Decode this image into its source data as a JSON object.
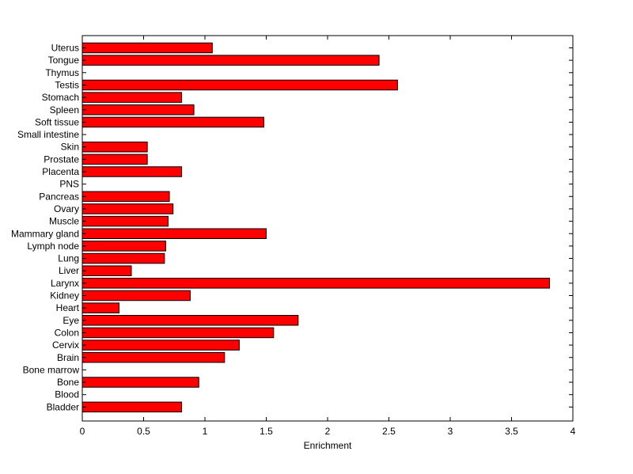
{
  "chart_data": {
    "type": "bar",
    "orientation": "horizontal",
    "title": "",
    "xlabel": "Enrichment",
    "ylabel": "",
    "xlim": [
      0,
      4
    ],
    "xticks": [
      0,
      0.5,
      1,
      1.5,
      2,
      2.5,
      3,
      3.5,
      4
    ],
    "xtick_labels": [
      "0",
      "0.5",
      "1",
      "1.5",
      "2",
      "2.5",
      "3",
      "3.5",
      "4"
    ],
    "grid": false,
    "bar_color": "#ff0000",
    "categories": [
      "Uterus",
      "Tongue",
      "Thymus",
      "Testis",
      "Stomach",
      "Spleen",
      "Soft tissue",
      "Small intestine",
      "Skin",
      "Prostate",
      "Placenta",
      "PNS",
      "Pancreas",
      "Ovary",
      "Muscle",
      "Mammary gland",
      "Lymph node",
      "Lung",
      "Liver",
      "Larynx",
      "Kidney",
      "Heart",
      "Eye",
      "Colon",
      "Cervix",
      "Brain",
      "Bone marrow",
      "Bone",
      "Blood",
      "Bladder"
    ],
    "values": [
      1.06,
      2.42,
      0,
      2.57,
      0.81,
      0.91,
      1.48,
      0,
      0.53,
      0.53,
      0.81,
      0,
      0.71,
      0.74,
      0.7,
      1.5,
      0.68,
      0.67,
      0.4,
      3.81,
      0.88,
      0.3,
      1.76,
      1.56,
      1.28,
      1.16,
      0,
      0.95,
      0,
      0.81
    ]
  }
}
